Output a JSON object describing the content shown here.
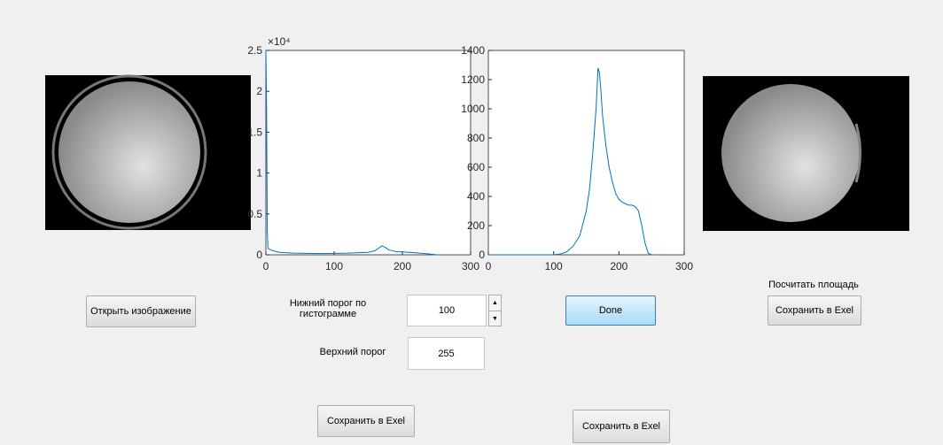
{
  "chart_data": [
    {
      "type": "line",
      "exponent_label": "×10⁴",
      "x": [
        0,
        1,
        2,
        3,
        5,
        10,
        20,
        40,
        80,
        120,
        150,
        160,
        165,
        170,
        175,
        180,
        190,
        200,
        220,
        240,
        250,
        255
      ],
      "series": [
        {
          "color": "#0072bd",
          "values": [
            25000,
            18000,
            3000,
            800,
            700,
            500,
            300,
            200,
            150,
            200,
            300,
            500,
            800,
            1100,
            900,
            600,
            400,
            350,
            250,
            100,
            0,
            0
          ]
        }
      ],
      "xlim": [
        0,
        300
      ],
      "xticks": [
        0,
        100,
        200,
        300
      ],
      "ylim": [
        0,
        25000
      ],
      "yticks": [
        {
          "value": 0,
          "label": "0"
        },
        {
          "value": 5000,
          "label": "0.5"
        },
        {
          "value": 10000,
          "label": "1"
        },
        {
          "value": 15000,
          "label": "1.5"
        },
        {
          "value": 20000,
          "label": "2"
        },
        {
          "value": 25000,
          "label": "2.5"
        }
      ]
    },
    {
      "type": "line",
      "x": [
        0,
        100,
        110,
        120,
        130,
        140,
        150,
        155,
        160,
        165,
        168,
        170,
        172,
        175,
        180,
        185,
        190,
        195,
        200,
        205,
        210,
        215,
        220,
        225,
        230,
        235,
        240,
        245,
        250,
        255
      ],
      "series": [
        {
          "color": "#0072bd",
          "values": [
            0,
            0,
            5,
            20,
            60,
            130,
            300,
            450,
            700,
            1000,
            1280,
            1250,
            1150,
            950,
            750,
            600,
            500,
            420,
            380,
            360,
            350,
            340,
            340,
            330,
            300,
            200,
            80,
            10,
            0,
            0
          ]
        }
      ],
      "xlim": [
        0,
        300
      ],
      "xticks": [
        0,
        100,
        200,
        300
      ],
      "ylim": [
        0,
        1400
      ],
      "yticks": [
        0,
        200,
        400,
        600,
        800,
        1000,
        1200,
        1400
      ]
    }
  ],
  "ui": {
    "open_button": "Открыть изображение",
    "lower_label": "Нижний порог по гистограмме",
    "lower_value": "100",
    "upper_label": "Верхний порог",
    "upper_value": "255",
    "done_button": "Done",
    "area_label": "Посчитать площадь",
    "save_right": "Сохранить в Exel",
    "save_left": "Сохранить в Exel",
    "save_middle": "Сохранить в Exel"
  }
}
